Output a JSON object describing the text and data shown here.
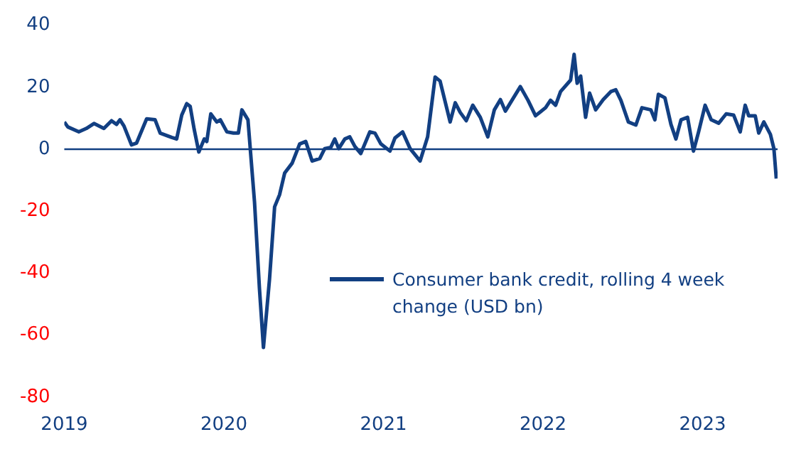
{
  "chart_data": {
    "type": "line",
    "x": [
      2019.0,
      2019.022,
      2019.091,
      2019.138,
      2019.186,
      2019.248,
      2019.296,
      2019.327,
      2019.349,
      2019.374,
      2019.421,
      2019.453,
      2019.516,
      2019.569,
      2019.601,
      2019.673,
      2019.704,
      2019.736,
      2019.767,
      2019.789,
      2019.814,
      2019.843,
      2019.877,
      2019.893,
      2019.918,
      2019.956,
      2019.978,
      2020.019,
      2020.06,
      2020.091,
      2020.113,
      2020.151,
      2020.192,
      2020.223,
      2020.248,
      2020.286,
      2020.318,
      2020.349,
      2020.381,
      2020.428,
      2020.475,
      2020.513,
      2020.553,
      2020.601,
      2020.632,
      2020.67,
      2020.695,
      2020.72,
      2020.758,
      2020.789,
      2020.821,
      2020.858,
      2020.915,
      2020.947,
      2020.984,
      2021.041,
      2021.072,
      2021.12,
      2021.167,
      2021.23,
      2021.277,
      2021.324,
      2021.355,
      2021.418,
      2021.45,
      2021.481,
      2021.519,
      2021.56,
      2021.607,
      2021.654,
      2021.695,
      2021.733,
      2021.764,
      2021.796,
      2021.858,
      2021.906,
      2021.953,
      2022.016,
      2022.047,
      2022.079,
      2022.11,
      2022.173,
      2022.195,
      2022.214,
      2022.236,
      2022.267,
      2022.292,
      2022.33,
      2022.377,
      2022.425,
      2022.456,
      2022.488,
      2022.535,
      2022.582,
      2022.62,
      2022.676,
      2022.701,
      2022.723,
      2022.764,
      2022.802,
      2022.833,
      2022.865,
      2022.906,
      2022.943,
      2022.975,
      2023.016,
      2023.054,
      2023.101,
      2023.148,
      2023.195,
      2023.236,
      2023.267,
      2023.289,
      2023.33,
      2023.352,
      2023.384,
      2023.425,
      2023.447,
      2023.462
    ],
    "series": [
      {
        "name": "Consumer bank credit, rolling 4 week change (USD bn)",
        "color": "#123f82",
        "values": [
          8.8,
          7.2,
          5.6,
          6.7,
          8.3,
          6.7,
          9.2,
          8,
          9.5,
          7.5,
          1.4,
          2,
          9.8,
          9.5,
          5.2,
          3.8,
          3.3,
          11,
          14.7,
          13.8,
          6.4,
          -0.9,
          3.3,
          2.5,
          11.4,
          8.8,
          9.5,
          5.6,
          5.2,
          5.2,
          12.7,
          9.5,
          -17,
          -45,
          -64,
          -42,
          -18.6,
          -14.7,
          -7.7,
          -4.5,
          1.7,
          2.5,
          -3.8,
          -3,
          0.2,
          0.6,
          3.3,
          0.2,
          3.3,
          4,
          0.9,
          -1.4,
          5.6,
          5.2,
          1.7,
          -0.6,
          3.6,
          5.6,
          0.2,
          -3.8,
          4,
          23.3,
          22,
          8.8,
          15,
          11.9,
          9.2,
          14.2,
          10.3,
          4,
          12.7,
          16,
          12.3,
          15,
          20.2,
          15.8,
          10.8,
          13.4,
          15.8,
          14.2,
          18.6,
          22.3,
          30.6,
          21.3,
          23.6,
          10.3,
          18.1,
          12.7,
          16,
          18.6,
          19.2,
          15.8,
          8.8,
          7.8,
          13.4,
          12.7,
          9.5,
          17.7,
          16.6,
          8,
          3.3,
          9.5,
          10.3,
          -0.6,
          5.6,
          14.2,
          9.5,
          8.4,
          11.4,
          11,
          5.6,
          14.2,
          10.8,
          10.8,
          5.2,
          8.8,
          4.8,
          0.2,
          -9.5
        ]
      }
    ],
    "xlim": [
      2019,
      2023.47
    ],
    "xticks": [
      2019,
      2020,
      2021,
      2022,
      2023
    ],
    "ylim": [
      -80,
      40
    ],
    "yticks": [
      -80,
      -60,
      -40,
      -20,
      0,
      20,
      40
    ],
    "ref_lines": [
      {
        "axis": "y",
        "value": 0,
        "color": "#123f82"
      }
    ],
    "grid": false,
    "legend": "bottom right",
    "marker": "none",
    "line_style": "solid"
  }
}
